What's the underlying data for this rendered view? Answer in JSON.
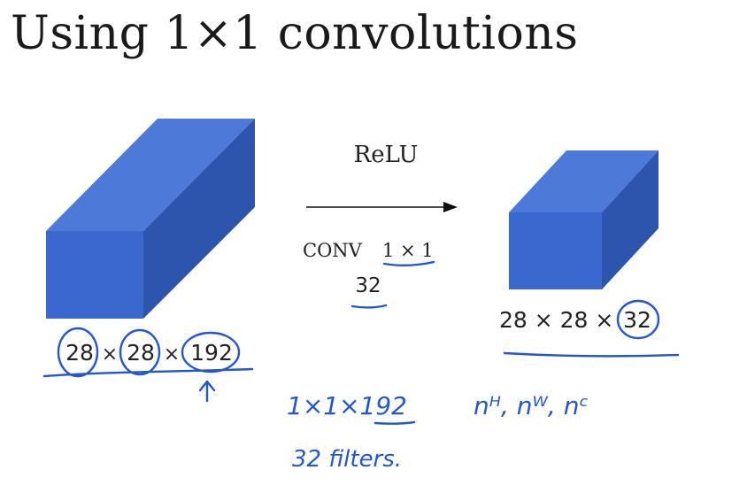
{
  "title": "Using 1×1 convolutions",
  "input_volume": {
    "h": "28",
    "times1": "×",
    "w": "28",
    "times2": "×",
    "c": "192",
    "front_color": "#3a68cc",
    "top_color": "#4d7ad8",
    "side_color": "#2d55ad"
  },
  "operation": {
    "activation": "ReLU",
    "conv_label": "CONV",
    "kernel": "1 × 1",
    "num_filters": "32"
  },
  "output_volume": {
    "dims_prefix": "28 × 28 ×",
    "c": "32",
    "front_color": "#3a68cc",
    "top_color": "#4d7ad8",
    "side_color": "#2d55ad"
  },
  "annotations": {
    "filter_shape": "1×1×192",
    "filter_count": "32 filters.",
    "notation": "nᴴ, nᵂ, nᶜ"
  },
  "ink_color": "#2457c9"
}
